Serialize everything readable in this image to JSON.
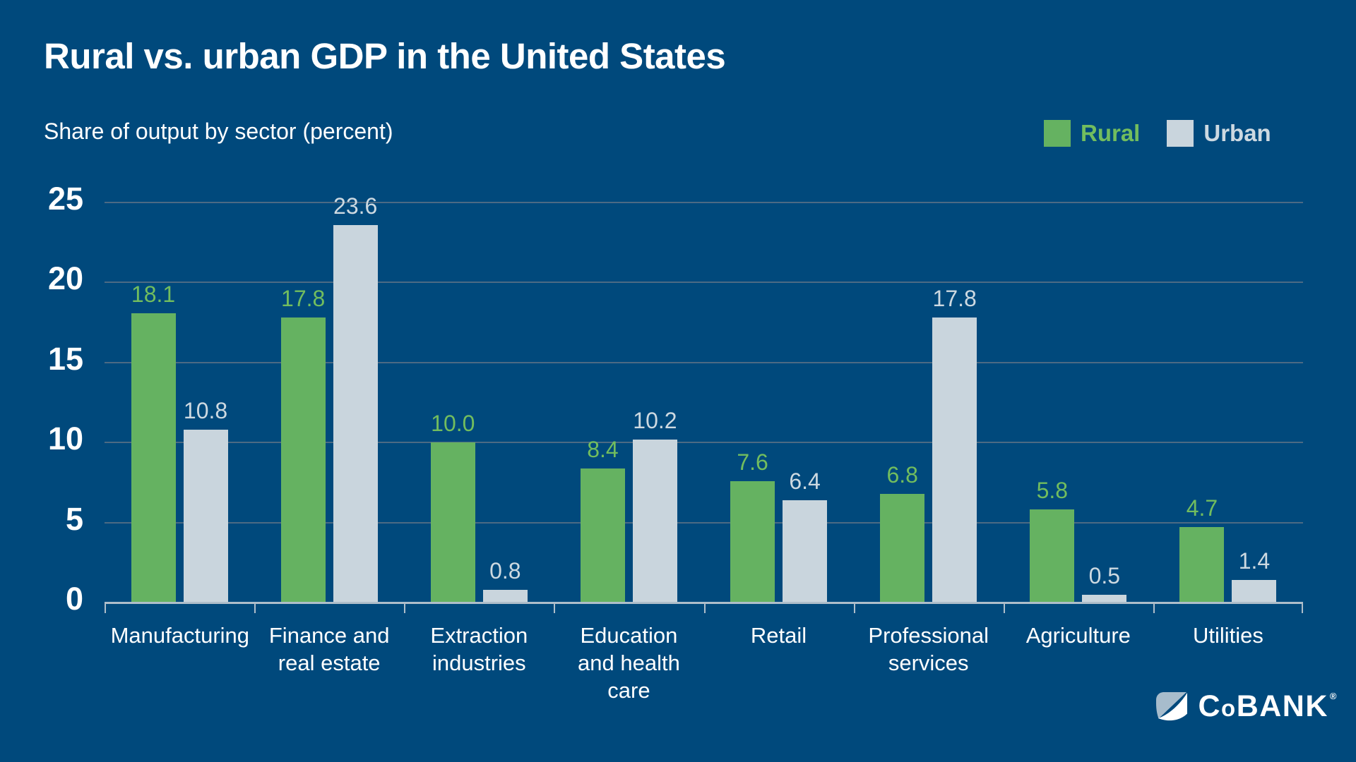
{
  "title": "Rural vs. urban GDP in the United States",
  "subtitle": "Share of output by sector (percent)",
  "colors": {
    "background": "#00497C",
    "rural": "#65B261",
    "rural_label": "#72BD5E",
    "urban": "#C9D5DD",
    "urban_label": "#CDD9E1",
    "gridline": "#4C6A84",
    "axis_line": "#AFBECA",
    "text": "#FFFFFF"
  },
  "legend": {
    "items": [
      {
        "label": "Rural",
        "color": "#65B261"
      },
      {
        "label": "Urban",
        "color": "#C9D5DD"
      }
    ]
  },
  "chart_data": {
    "type": "bar",
    "categories": [
      "Manufacturing",
      "Finance and real estate",
      "Extraction industries",
      "Education and health care",
      "Retail",
      "Professional services",
      "Agriculture",
      "Utilities"
    ],
    "series": [
      {
        "name": "Rural",
        "color": "#65B261",
        "label_color": "#72BD5E",
        "values": [
          18.1,
          17.8,
          10.0,
          8.4,
          7.6,
          6.8,
          5.8,
          4.7
        ]
      },
      {
        "name": "Urban",
        "color": "#C9D5DD",
        "label_color": "#CDD9E1",
        "values": [
          10.8,
          23.6,
          0.8,
          10.2,
          6.4,
          17.8,
          0.5,
          1.4
        ]
      }
    ],
    "title": "Rural vs. urban GDP in the United States",
    "subtitle": "Share of output by sector (percent)",
    "xlabel": "",
    "ylabel": "Share of output by sector (percent)",
    "ylim": [
      0,
      25
    ],
    "yticks": [
      0,
      5,
      10,
      15,
      20,
      25
    ],
    "grid": true,
    "value_labels_decimals": 1,
    "legend_position": "top-right"
  },
  "logo": {
    "text_c": "C",
    "text_o": "o",
    "text_bank": "BANK",
    "registered": "®"
  }
}
